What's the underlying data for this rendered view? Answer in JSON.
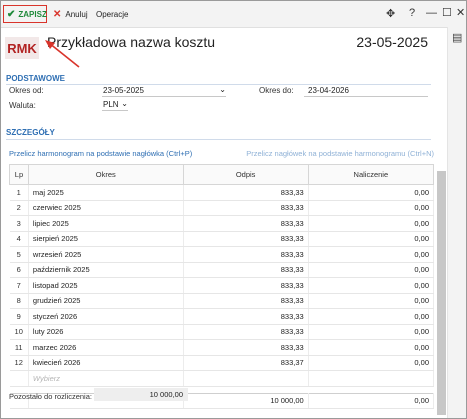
{
  "toolbar": {
    "save_label": "ZAPISZ",
    "cancel_label": "Anuluj",
    "operations_label": "Operacje"
  },
  "header": {
    "badge": "RMK",
    "title": "Przykładowa nazwa kosztu",
    "date": "23-05-2025"
  },
  "basic": {
    "section_title": "PODSTAWOWE",
    "period_from_label": "Okres od:",
    "period_from_value": "23-05-2025",
    "period_to_label": "Okres do:",
    "period_to_value": "23-04-2026",
    "currency_label": "Waluta:",
    "currency_value": "PLN"
  },
  "details": {
    "section_title": "SZCZEGÓŁY",
    "link_left": "Przelicz harmonogram na podstawie nagłówka (Ctrl+P)",
    "link_right": "Przelicz nagłówek na podstawie harmonogramu (Ctrl+N)"
  },
  "table": {
    "columns": [
      "Lp",
      "Okres",
      "Odpis",
      "Naliczenie"
    ],
    "rows": [
      {
        "lp": "1",
        "period": "maj 2025",
        "odpis": "833,33",
        "naliczenie": "0,00"
      },
      {
        "lp": "2",
        "period": "czerwiec 2025",
        "odpis": "833,33",
        "naliczenie": "0,00"
      },
      {
        "lp": "3",
        "period": "lipiec 2025",
        "odpis": "833,33",
        "naliczenie": "0,00"
      },
      {
        "lp": "4",
        "period": "sierpień 2025",
        "odpis": "833,33",
        "naliczenie": "0,00"
      },
      {
        "lp": "5",
        "period": "wrzesień 2025",
        "odpis": "833,33",
        "naliczenie": "0,00"
      },
      {
        "lp": "6",
        "period": "październik 2025",
        "odpis": "833,33",
        "naliczenie": "0,00"
      },
      {
        "lp": "7",
        "period": "listopad 2025",
        "odpis": "833,33",
        "naliczenie": "0,00"
      },
      {
        "lp": "8",
        "period": "grudzień 2025",
        "odpis": "833,33",
        "naliczenie": "0,00"
      },
      {
        "lp": "9",
        "period": "styczeń 2026",
        "odpis": "833,33",
        "naliczenie": "0,00"
      },
      {
        "lp": "10",
        "period": "luty 2026",
        "odpis": "833,33",
        "naliczenie": "0,00"
      },
      {
        "lp": "11",
        "period": "marzec 2026",
        "odpis": "833,33",
        "naliczenie": "0,00"
      },
      {
        "lp": "12",
        "period": "kwiecień 2026",
        "odpis": "833,37",
        "naliczenie": "0,00"
      }
    ],
    "search_placeholder": "Wybierz",
    "sum_odpis": "10 000,00",
    "sum_naliczenie": "0,00"
  },
  "footer": {
    "remaining_label": "Pozostało do rozliczenia:",
    "remaining_value": "10 000,00"
  },
  "icons": {
    "save": "check-icon",
    "cancel": "close-icon",
    "move": "move-icon",
    "help": "help-icon",
    "minimize": "minimize-icon",
    "maximize": "maximize-icon",
    "close": "close-window-icon",
    "comments": "comment-icon",
    "dropdown": "chevron-down-icon"
  },
  "colors": {
    "accent": "#2f6fb3",
    "badge_text": "#b22222",
    "save_green": "#1f8a3a",
    "highlight_red": "#d9342b"
  }
}
